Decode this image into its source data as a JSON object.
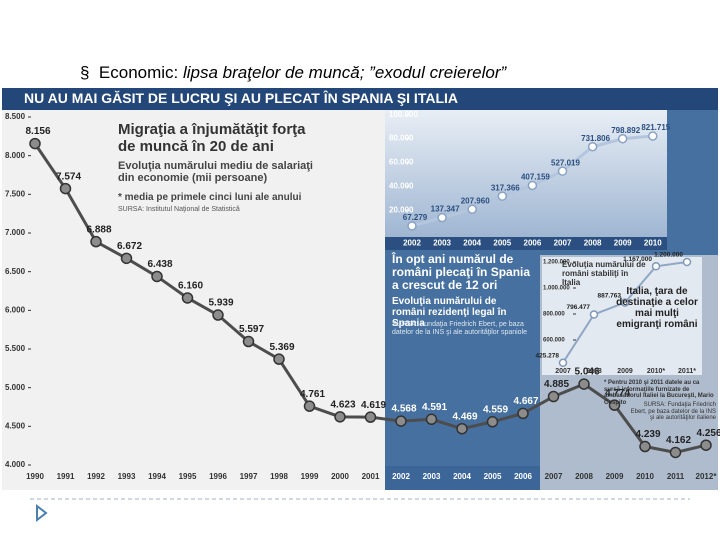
{
  "slide": {
    "bullet_lead": "Economic: ",
    "bullet_rest": "lipsa braţelor de muncă; ”exodul creierelor”"
  },
  "banner": {
    "title": "NU AU MAI GĂSIT DE LUCRU ŞI AU PLECAT ÎN SPANIA ŞI ITALIA"
  },
  "chart_data": [
    {
      "type": "line",
      "title": "Migraţia a înjumătăţit forţa de muncă în 20 de ani",
      "subtitle": "Evoluţia numărului mediu de salariaţi din economie (mii persoane)",
      "note": "* media pe primele cinci luni ale anului",
      "source": "SURSA: Institutul Naţional de Statistică",
      "categories": [
        "1990",
        "1991",
        "1992",
        "1993",
        "1994",
        "1995",
        "1996",
        "1997",
        "1998",
        "1999",
        "2000",
        "2001",
        "2002",
        "2003",
        "2004",
        "2005",
        "2006",
        "2007",
        "2008",
        "2009",
        "2010",
        "2011",
        "2012*"
      ],
      "values": [
        8.156,
        7.574,
        6.888,
        6.672,
        6.438,
        6.16,
        5.939,
        5.597,
        5.369,
        4.761,
        4.623,
        4.619,
        4.568,
        4.591,
        4.469,
        4.559,
        4.667,
        4.885,
        5.046,
        4.774,
        4.239,
        4.162,
        4.256
      ],
      "value_labels": [
        "8.156",
        "7.574",
        "6.888",
        "6.672",
        "6.438",
        "6.160",
        "5.939",
        "5.597",
        "5.369",
        "4.761",
        "4.623",
        "4.619",
        "4.568",
        "4.591",
        "4.469",
        "4.559",
        "4.667",
        "4.885",
        "5.046",
        "4.774",
        "4.239",
        "4.162",
        "4.256"
      ],
      "color": "#4d4d4d",
      "ylim": [
        4,
        8.5
      ],
      "yticks": [
        {
          "value": 4,
          "label": "4.000"
        },
        {
          "value": 4.5,
          "label": "4.500"
        },
        {
          "value": 5,
          "label": "5.000"
        },
        {
          "value": 5.5,
          "label": "5.500"
        },
        {
          "value": 6,
          "label": "6.000"
        },
        {
          "value": 6.5,
          "label": "6.500"
        },
        {
          "value": 7,
          "label": "7.000"
        },
        {
          "value": 7.5,
          "label": "7.500"
        },
        {
          "value": 8,
          "label": "8.000"
        },
        {
          "value": 8.5,
          "label": "8.500"
        }
      ],
      "grid": false
    },
    {
      "type": "line",
      "title": "În opt ani numărul de români plecaţi în Spania a crescut de 12 ori",
      "subtitle": "Evoluţia numărului de români rezidenţi legal în Spania",
      "source": "SURSA: Fundaţia Friedrich Ebert, pe baza datelor de la INS şi ale autorităţilor spaniole",
      "categories": [
        "2002",
        "2003",
        "2004",
        "2005",
        "2006",
        "2007",
        "2008",
        "2009",
        "2010"
      ],
      "series": [
        {
          "color": "#b3c6de",
          "axis": "y2",
          "values": [
            67279,
            137347,
            207960,
            317366,
            407159,
            527019,
            731806,
            798892,
            821715
          ],
          "value_labels": [
            "67.279",
            "137.347",
            "207.960",
            "317.366",
            "407.159",
            "527.019",
            "731.806",
            "798.892",
            "821.715"
          ]
        }
      ],
      "ylim": [
        0,
        104000
      ],
      "yticks": [
        {
          "value": 20000,
          "label": "20.000"
        },
        {
          "value": 40000,
          "label": "40.000"
        },
        {
          "value": 60000,
          "label": "60.000"
        },
        {
          "value": 80000,
          "label": "80.000"
        },
        {
          "value": 100000,
          "label": "100.000"
        }
      ],
      "y2lim": [
        0,
        1040000
      ],
      "grid": false
    },
    {
      "type": "line",
      "title": "Evoluţia numărului de români stabiliţi în Italia",
      "annotation": "Italia, ţara de destinaţie a celor mai mulţi emigranţi români",
      "note": "* Pentru 2010 şi 2011 datele au ca sursă informaţiile furnizate de ambasadorul Italiei la Bucureşti, Mario Cospito",
      "source": "SURSA: Fundaţia Friedrich Ebert, pe baza datelor de la INS şi ale autorităţilor italiene",
      "categories": [
        "2007",
        "2008",
        "2009",
        "2010*",
        "2011*"
      ],
      "values": [
        425278,
        796477,
        887763,
        1167000,
        1200000
      ],
      "value_labels": [
        "425.278",
        "796.477",
        "887.763",
        "1.167.000",
        "1.200.000"
      ],
      "color": "#8fa6c4",
      "ylim": [
        400000,
        1250000
      ],
      "yticks": [
        {
          "value": 600000,
          "label": "600.000"
        },
        {
          "value": 800000,
          "label": "800.000"
        },
        {
          "value": 1000000,
          "label": "1.000.000"
        },
        {
          "value": 1200000,
          "label": "1.200.000"
        }
      ],
      "grid": false
    }
  ]
}
